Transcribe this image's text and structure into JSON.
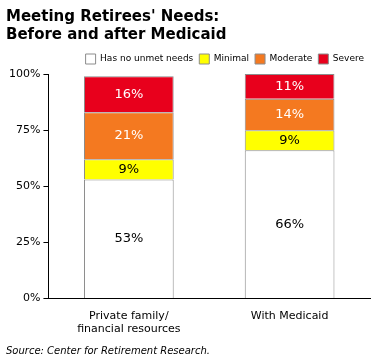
{
  "chart_data": {
    "type": "bar",
    "title": "Meeting Retirees' Needs: Before and after Medicaid",
    "source": "Source: Center for Retirement Research.",
    "categories": [
      "Private family/ financial resources",
      "With Medicaid"
    ],
    "series": [
      {
        "name": "Has no unmet needs",
        "color": "#ffffff",
        "values": [
          53,
          66
        ],
        "value_labels": [
          "53%",
          "66%"
        ]
      },
      {
        "name": "Minimal",
        "color": "#ffff00",
        "values": [
          9,
          9
        ],
        "value_labels": [
          "9%",
          "9%"
        ]
      },
      {
        "name": "Moderate",
        "color": "#f47920",
        "values": [
          21,
          14
        ],
        "value_labels": [
          "21%",
          "14%"
        ]
      },
      {
        "name": "Severe",
        "color": "#e8001c",
        "values": [
          16,
          11
        ],
        "value_labels": [
          "16%",
          "11%"
        ]
      }
    ],
    "stacked": true,
    "data_labels": true,
    "legend": "top",
    "grid": false,
    "ylim": [
      0,
      100
    ],
    "yticks": [
      {
        "value": 0,
        "label": "0%"
      },
      {
        "value": 25,
        "label": "25%"
      },
      {
        "value": 50,
        "label": "50%"
      },
      {
        "value": 75,
        "label": "75%"
      },
      {
        "value": 100,
        "label": "100%"
      }
    ]
  }
}
